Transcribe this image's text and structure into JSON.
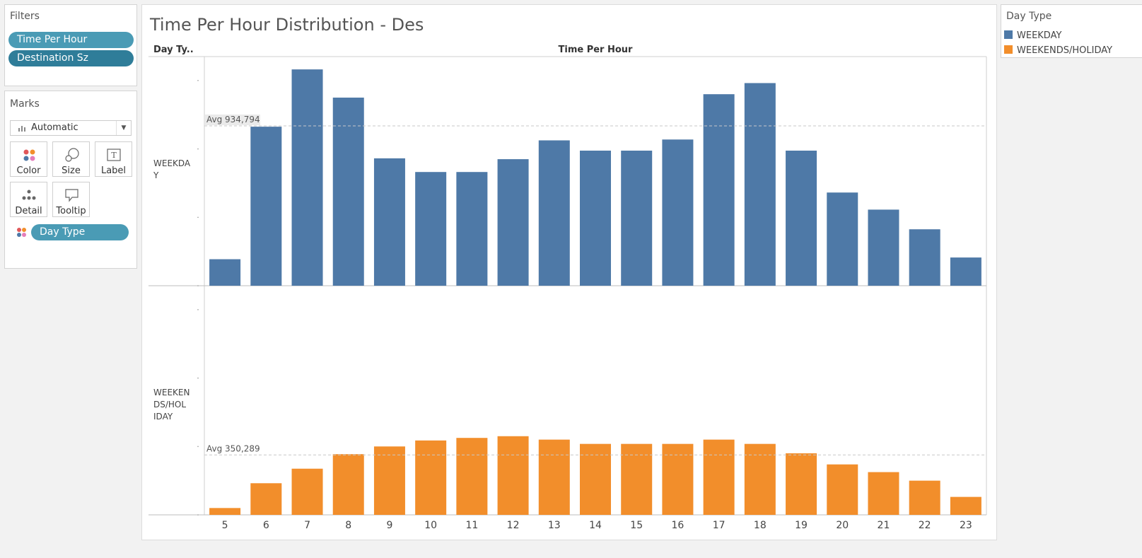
{
  "filters": {
    "title": "Filters",
    "pills": [
      "Time Per Hour",
      "Destination Sz"
    ]
  },
  "marks": {
    "title": "Marks",
    "mark_type": "Automatic",
    "buttons": [
      "Color",
      "Size",
      "Label",
      "Detail",
      "Tooltip"
    ],
    "color_pill": "Day Type"
  },
  "sheet": {
    "title": "Time Per Hour Distribution - Des",
    "row_header": "Day Ty..",
    "column_header": "Time Per Hour"
  },
  "legend": {
    "title": "Day Type",
    "items": [
      {
        "label": "WEEKDAY",
        "color": "#4e79a7"
      },
      {
        "label": "WEEKENDS/HOLIDAY",
        "color": "#f28e2b"
      }
    ]
  },
  "chart_data": {
    "type": "bar",
    "x_label": "Time Per Hour",
    "categories": [
      "5",
      "6",
      "7",
      "8",
      "9",
      "10",
      "11",
      "12",
      "13",
      "14",
      "15",
      "16",
      "17",
      "18",
      "19",
      "20",
      "21",
      "22",
      "23"
    ],
    "panes": [
      {
        "row_label": "WEEKDAY",
        "color": "#4e79a7",
        "average": 934794,
        "average_label": "Avg 934,794",
        "values": [
          155000,
          930000,
          1265000,
          1100000,
          745000,
          665000,
          665000,
          740000,
          850000,
          790000,
          790000,
          855000,
          1120000,
          1185000,
          790000,
          545000,
          445000,
          330000,
          165000
        ]
      },
      {
        "row_label": "WEEKENDS/HOLIDAY",
        "color": "#f28e2b",
        "average": 350289,
        "average_label": "Avg 350,289",
        "values": [
          40000,
          185000,
          270000,
          355000,
          400000,
          435000,
          450000,
          460000,
          440000,
          415000,
          415000,
          415000,
          440000,
          415000,
          360000,
          295000,
          250000,
          200000,
          105000
        ]
      }
    ]
  }
}
